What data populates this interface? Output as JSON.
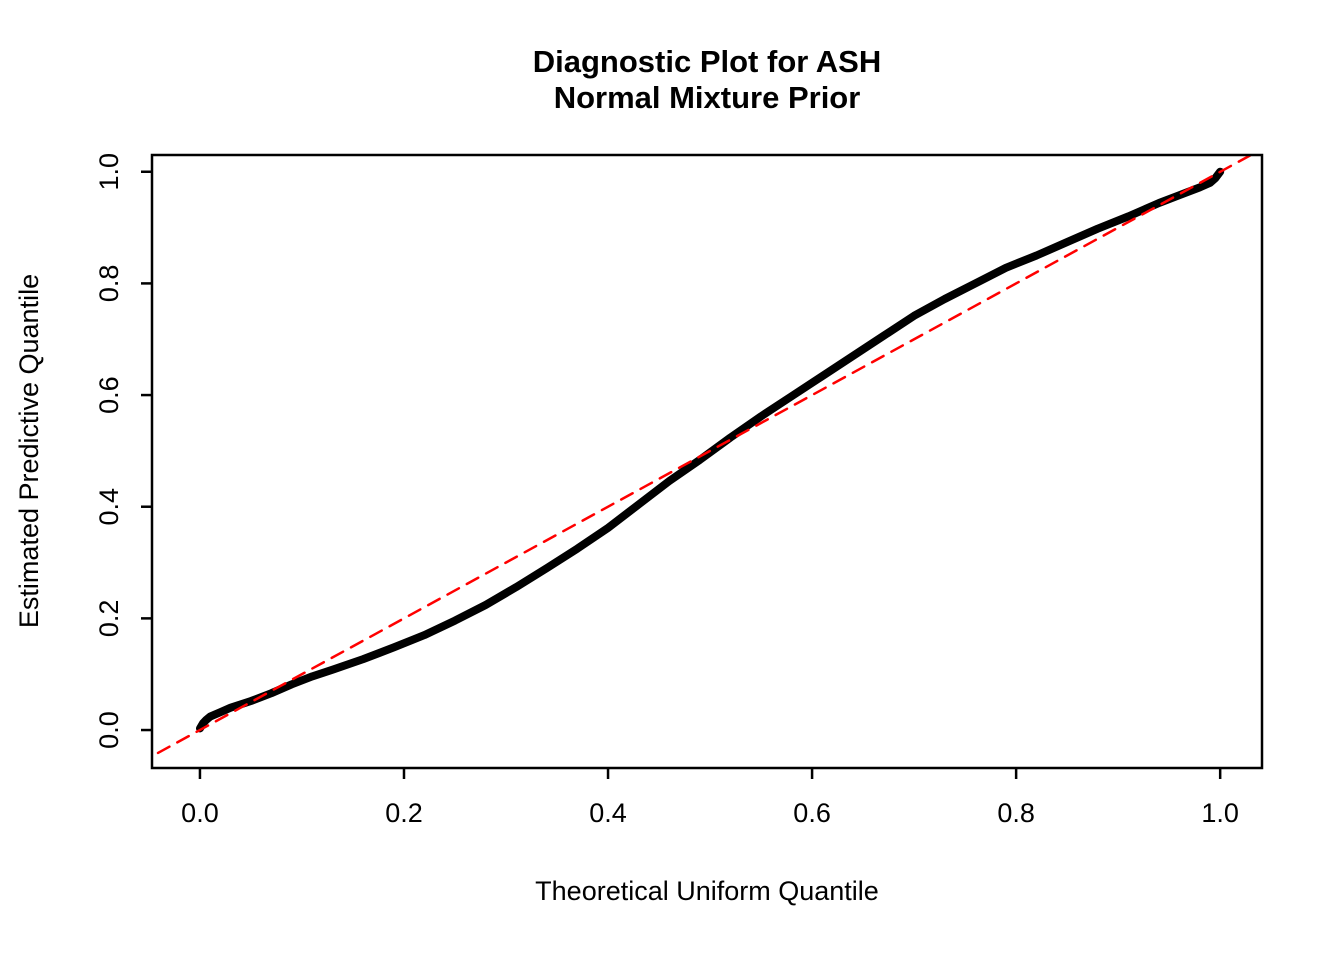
{
  "chart_data": {
    "type": "line",
    "title": "Diagnostic Plot for ASH",
    "subtitle": "Normal Mixture Prior",
    "xlabel": "Theoretical Uniform Quantile",
    "ylabel": "Estimated Predictive Quantile",
    "xlim": [
      -0.047,
      1.041
    ],
    "ylim": [
      -0.068,
      1.03
    ],
    "grid": false,
    "legend": "none",
    "xticks": [
      0.0,
      0.2,
      0.4,
      0.6,
      0.8,
      1.0
    ],
    "xtick_labels": [
      "0.0",
      "0.2",
      "0.4",
      "0.6",
      "0.8",
      "1.0"
    ],
    "yticks": [
      0.0,
      0.2,
      0.4,
      0.6,
      0.8,
      1.0
    ],
    "ytick_labels": [
      "0.0",
      "0.2",
      "0.4",
      "0.6",
      "0.8",
      "1.0"
    ],
    "colors": {
      "curve": "#000000",
      "reference_line": "#FF0000",
      "box": "#000000",
      "background": "#FFFFFF"
    },
    "series": [
      {
        "name": "estimated-predictive-quantile-curve",
        "style": "solid",
        "color": "#000000",
        "stroke_width": 8,
        "x": [
          0.0,
          0.003,
          0.006,
          0.01,
          0.02,
          0.03,
          0.05,
          0.07,
          0.09,
          0.11,
          0.13,
          0.16,
          0.19,
          0.22,
          0.25,
          0.28,
          0.31,
          0.34,
          0.37,
          0.4,
          0.43,
          0.46,
          0.49,
          0.52,
          0.55,
          0.58,
          0.61,
          0.64,
          0.67,
          0.7,
          0.73,
          0.76,
          0.79,
          0.82,
          0.85,
          0.88,
          0.91,
          0.94,
          0.96,
          0.98,
          0.99,
          0.995,
          1.0
        ],
        "y": [
          0.003,
          0.012,
          0.018,
          0.024,
          0.032,
          0.04,
          0.052,
          0.066,
          0.082,
          0.096,
          0.108,
          0.127,
          0.148,
          0.17,
          0.196,
          0.224,
          0.256,
          0.29,
          0.325,
          0.362,
          0.404,
          0.446,
          0.484,
          0.524,
          0.562,
          0.598,
          0.634,
          0.67,
          0.706,
          0.742,
          0.772,
          0.8,
          0.828,
          0.85,
          0.874,
          0.898,
          0.92,
          0.944,
          0.958,
          0.972,
          0.98,
          0.988,
          1.0
        ]
      },
      {
        "name": "identity-reference-line",
        "style": "dashed",
        "color": "#FF0000",
        "stroke_width": 2.5,
        "x": [
          -0.06,
          1.06
        ],
        "y": [
          -0.06,
          1.06
        ]
      }
    ]
  }
}
